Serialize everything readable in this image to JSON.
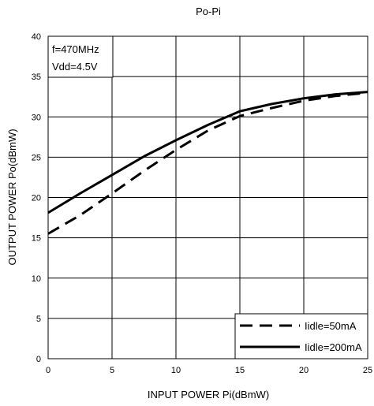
{
  "chart_data": {
    "type": "line",
    "title": "Po-Pi",
    "xlabel": "INPUT POWER Pi(dBmW)",
    "ylabel": "OUTPUT POWER Po(dBmW)",
    "xlim": [
      0,
      25
    ],
    "ylim": [
      0,
      40
    ],
    "x_ticks": [
      0,
      5,
      10,
      15,
      20,
      25
    ],
    "y_ticks": [
      0,
      5,
      10,
      15,
      20,
      25,
      30,
      35,
      40
    ],
    "grid": true,
    "annotation": {
      "lines": [
        "f=470MHz",
        "Vdd=4.5V"
      ],
      "placement": "top-left"
    },
    "legend": {
      "placement": "bottom-right"
    },
    "series": [
      {
        "name": "Iidle=50mA",
        "style": "dashed",
        "x": [
          0,
          2.5,
          5,
          7.5,
          10,
          12.5,
          15,
          17.5,
          20,
          22.5,
          25
        ],
        "y": [
          15.5,
          17.8,
          20.5,
          23.3,
          25.9,
          28.3,
          30.1,
          31.1,
          32.0,
          32.6,
          33.0
        ]
      },
      {
        "name": "Iidle=200mA",
        "style": "solid",
        "x": [
          0,
          2.5,
          5,
          7.5,
          10,
          12.5,
          15,
          17.5,
          20,
          22.5,
          25
        ],
        "y": [
          18.1,
          20.5,
          22.8,
          25.1,
          27.1,
          29.0,
          30.7,
          31.6,
          32.3,
          32.8,
          33.1
        ]
      }
    ]
  }
}
